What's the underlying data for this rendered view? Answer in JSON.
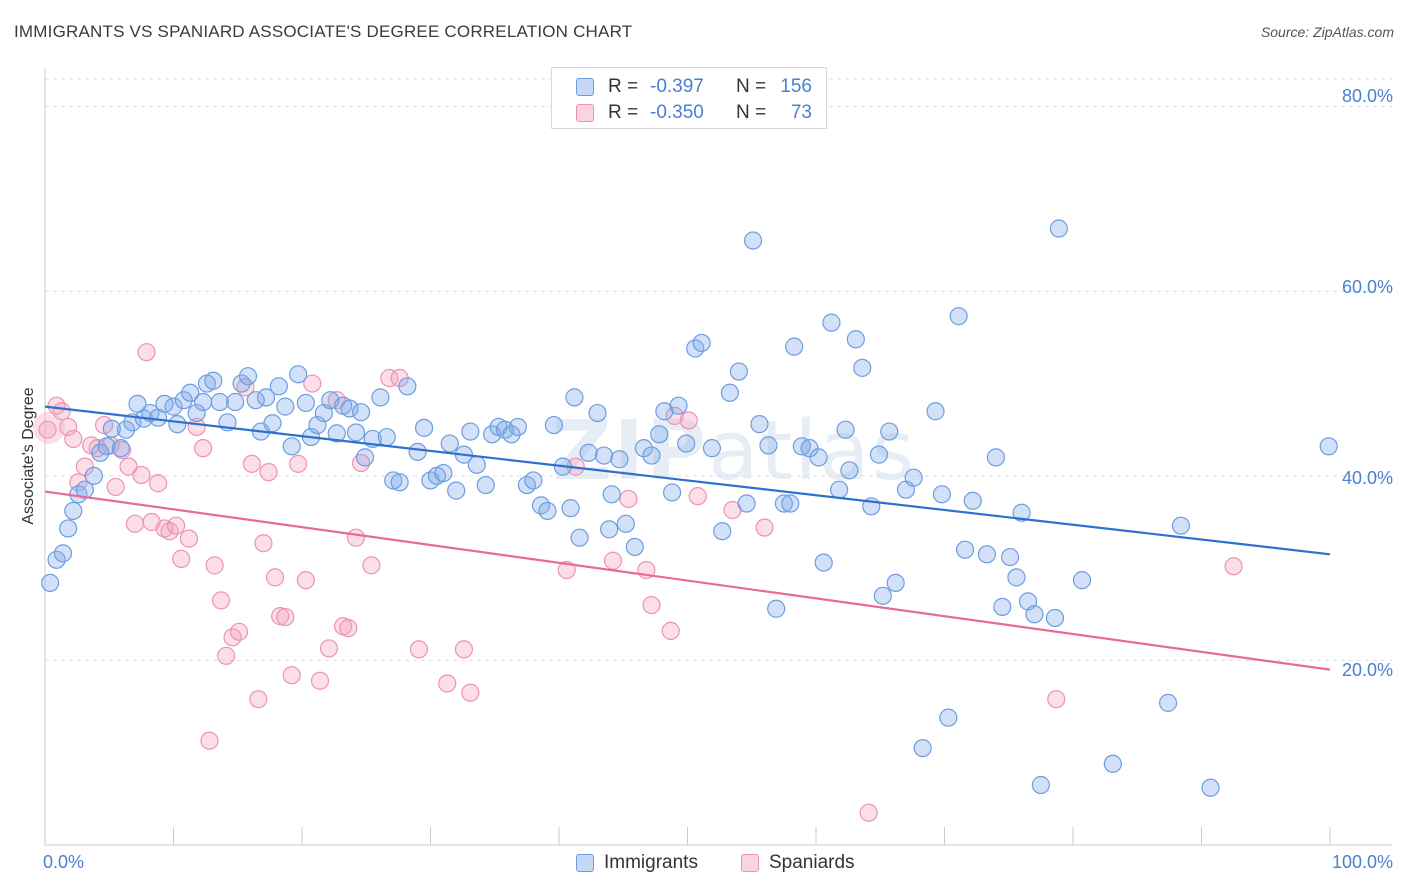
{
  "title": "IMMIGRANTS VS SPANIARD ASSOCIATE'S DEGREE CORRELATION CHART",
  "source": "Source: ZipAtlas.com",
  "watermark": {
    "bold": "ZIP",
    "thin": "atlas"
  },
  "colors": {
    "blue_fill": "rgba(126,170,234,0.35)",
    "blue_stroke": "#6b9ee0",
    "blue_line": "#2f6fd0",
    "pink_fill": "rgba(244,160,190,0.35)",
    "pink_stroke": "#ee92b2",
    "pink_line": "#e86a96",
    "tick_text": "#4a80d0",
    "grid": "#dedede"
  },
  "legend": {
    "rows": [
      {
        "series": "Immigrants",
        "r_label": "R =",
        "r_value": "-0.397",
        "n_label": "N =",
        "n_value": "156"
      },
      {
        "series": "Spaniards",
        "r_label": "R =",
        "r_value": "-0.350",
        "n_label": "N =",
        "n_value": "73"
      }
    ]
  },
  "bottom_legend": [
    "Immigrants",
    "Spaniards"
  ],
  "chart_data": {
    "type": "scatter",
    "title": "IMMIGRANTS VS SPANIARD ASSOCIATE'S DEGREE CORRELATION CHART",
    "xlabel": "",
    "ylabel": "Associate's Degree",
    "xlim": [
      0,
      100
    ],
    "ylim": [
      0,
      83
    ],
    "x_tick_labels": [
      "0.0%",
      "100.0%"
    ],
    "y_ticks": [
      20,
      40,
      60,
      80
    ],
    "y_tick_labels": [
      "20.0%",
      "40.0%",
      "60.0%",
      "80.0%"
    ],
    "grid": true,
    "legend_position": "top-center",
    "series": [
      {
        "name": "Immigrants",
        "r": -0.397,
        "n": 156,
        "trend": {
          "x": [
            0,
            100
          ],
          "y": [
            47.5,
            31.5
          ]
        },
        "points": [
          [
            0.4,
            28.4
          ],
          [
            0.9,
            30.9
          ],
          [
            1.4,
            31.6
          ],
          [
            1.8,
            34.3
          ],
          [
            2.2,
            36.2
          ],
          [
            2.6,
            38.0
          ],
          [
            3.1,
            38.5
          ],
          [
            3.8,
            40.0
          ],
          [
            4.3,
            42.5
          ],
          [
            4.8,
            43.2
          ],
          [
            5.2,
            45.1
          ],
          [
            5.9,
            43.0
          ],
          [
            6.3,
            45.0
          ],
          [
            6.8,
            45.8
          ],
          [
            7.2,
            47.8
          ],
          [
            7.7,
            46.2
          ],
          [
            8.2,
            46.8
          ],
          [
            8.8,
            46.3
          ],
          [
            9.3,
            47.8
          ],
          [
            10.0,
            47.5
          ],
          [
            10.3,
            45.6
          ],
          [
            10.8,
            48.2
          ],
          [
            11.3,
            49.0
          ],
          [
            11.8,
            46.8
          ],
          [
            12.3,
            48.0
          ],
          [
            12.6,
            50.0
          ],
          [
            13.1,
            50.3
          ],
          [
            13.6,
            48.0
          ],
          [
            14.2,
            45.8
          ],
          [
            14.8,
            48.0
          ],
          [
            15.3,
            50.0
          ],
          [
            15.8,
            50.8
          ],
          [
            16.4,
            48.2
          ],
          [
            16.8,
            44.8
          ],
          [
            17.2,
            48.5
          ],
          [
            17.7,
            45.7
          ],
          [
            18.2,
            49.7
          ],
          [
            18.7,
            47.5
          ],
          [
            19.2,
            43.2
          ],
          [
            19.7,
            51.0
          ],
          [
            20.3,
            47.9
          ],
          [
            20.7,
            44.2
          ],
          [
            21.2,
            45.5
          ],
          [
            21.7,
            46.8
          ],
          [
            22.2,
            48.2
          ],
          [
            22.7,
            44.6
          ],
          [
            23.2,
            47.6
          ],
          [
            23.7,
            47.3
          ],
          [
            24.2,
            44.7
          ],
          [
            24.6,
            46.9
          ],
          [
            24.9,
            42.0
          ],
          [
            25.5,
            44.0
          ],
          [
            26.1,
            48.5
          ],
          [
            26.6,
            44.2
          ],
          [
            27.1,
            39.5
          ],
          [
            27.6,
            39.3
          ],
          [
            28.2,
            49.7
          ],
          [
            29.0,
            42.6
          ],
          [
            29.5,
            45.2
          ],
          [
            30.0,
            39.5
          ],
          [
            30.5,
            40.0
          ],
          [
            31.0,
            40.3
          ],
          [
            31.5,
            43.5
          ],
          [
            32.0,
            38.4
          ],
          [
            32.6,
            42.3
          ],
          [
            33.1,
            44.8
          ],
          [
            33.6,
            41.2
          ],
          [
            34.3,
            39.0
          ],
          [
            34.8,
            44.5
          ],
          [
            35.3,
            45.3
          ],
          [
            35.8,
            45.0
          ],
          [
            36.3,
            44.5
          ],
          [
            36.8,
            45.3
          ],
          [
            37.5,
            39.0
          ],
          [
            38.0,
            39.5
          ],
          [
            38.6,
            36.8
          ],
          [
            39.1,
            36.2
          ],
          [
            39.6,
            45.5
          ],
          [
            40.3,
            41.0
          ],
          [
            40.9,
            36.5
          ],
          [
            41.2,
            48.5
          ],
          [
            41.6,
            33.3
          ],
          [
            42.3,
            42.5
          ],
          [
            43.0,
            46.8
          ],
          [
            43.5,
            42.2
          ],
          [
            43.9,
            34.2
          ],
          [
            44.1,
            38.0
          ],
          [
            44.7,
            41.8
          ],
          [
            45.2,
            34.8
          ],
          [
            45.9,
            32.3
          ],
          [
            46.6,
            43.0
          ],
          [
            47.2,
            42.2
          ],
          [
            47.8,
            44.5
          ],
          [
            48.2,
            47.0
          ],
          [
            48.8,
            38.2
          ],
          [
            49.3,
            47.6
          ],
          [
            49.9,
            43.5
          ],
          [
            50.6,
            53.8
          ],
          [
            51.1,
            54.4
          ],
          [
            51.9,
            43.0
          ],
          [
            52.7,
            34.0
          ],
          [
            53.3,
            49.0
          ],
          [
            54.0,
            51.3
          ],
          [
            54.6,
            37.0
          ],
          [
            55.1,
            65.5
          ],
          [
            55.6,
            45.6
          ],
          [
            56.3,
            43.3
          ],
          [
            56.9,
            25.6
          ],
          [
            57.5,
            37.0
          ],
          [
            58.0,
            37.0
          ],
          [
            58.3,
            54.0
          ],
          [
            58.9,
            43.2
          ],
          [
            59.5,
            43.0
          ],
          [
            60.2,
            42.0
          ],
          [
            60.6,
            30.6
          ],
          [
            61.2,
            56.6
          ],
          [
            61.8,
            38.5
          ],
          [
            62.3,
            45.0
          ],
          [
            62.6,
            40.6
          ],
          [
            63.1,
            54.8
          ],
          [
            63.6,
            51.7
          ],
          [
            64.3,
            36.7
          ],
          [
            64.9,
            42.3
          ],
          [
            65.2,
            27.0
          ],
          [
            65.7,
            44.8
          ],
          [
            66.2,
            28.4
          ],
          [
            67.0,
            38.5
          ],
          [
            67.6,
            39.8
          ],
          [
            68.3,
            10.5
          ],
          [
            69.3,
            47.0
          ],
          [
            69.8,
            38.0
          ],
          [
            70.3,
            13.8
          ],
          [
            71.1,
            57.3
          ],
          [
            71.6,
            32.0
          ],
          [
            72.2,
            37.3
          ],
          [
            73.3,
            31.5
          ],
          [
            74.0,
            42.0
          ],
          [
            74.5,
            25.8
          ],
          [
            75.1,
            31.2
          ],
          [
            75.6,
            29.0
          ],
          [
            76.0,
            36.0
          ],
          [
            76.5,
            26.4
          ],
          [
            77.0,
            25.0
          ],
          [
            77.5,
            6.5
          ],
          [
            78.6,
            24.6
          ],
          [
            78.9,
            66.8
          ],
          [
            80.7,
            28.7
          ],
          [
            83.1,
            8.8
          ],
          [
            87.4,
            15.4
          ],
          [
            88.4,
            34.6
          ],
          [
            90.7,
            6.2
          ],
          [
            99.9,
            43.2
          ]
        ]
      },
      {
        "name": "Spaniards",
        "r": -0.35,
        "n": 73,
        "trend": {
          "x": [
            0,
            100
          ],
          "y": [
            38.3,
            19.0
          ]
        },
        "points": [
          [
            0.2,
            45.0
          ],
          [
            0.9,
            47.6
          ],
          [
            1.3,
            47.0
          ],
          [
            1.8,
            45.3
          ],
          [
            2.2,
            44.0
          ],
          [
            2.6,
            39.3
          ],
          [
            3.1,
            41.0
          ],
          [
            3.6,
            43.3
          ],
          [
            4.1,
            43.0
          ],
          [
            4.6,
            45.5
          ],
          [
            5.1,
            43.3
          ],
          [
            5.5,
            38.8
          ],
          [
            6.0,
            42.8
          ],
          [
            6.5,
            41.0
          ],
          [
            7.0,
            34.8
          ],
          [
            7.5,
            40.1
          ],
          [
            7.9,
            53.4
          ],
          [
            8.3,
            35.0
          ],
          [
            8.8,
            39.2
          ],
          [
            9.3,
            34.3
          ],
          [
            9.7,
            34.0
          ],
          [
            10.2,
            34.6
          ],
          [
            10.6,
            31.0
          ],
          [
            11.2,
            33.2
          ],
          [
            11.8,
            45.3
          ],
          [
            12.3,
            43.0
          ],
          [
            12.8,
            11.3
          ],
          [
            13.2,
            30.3
          ],
          [
            13.7,
            26.5
          ],
          [
            14.1,
            20.5
          ],
          [
            14.6,
            22.5
          ],
          [
            15.1,
            23.1
          ],
          [
            15.6,
            49.6
          ],
          [
            16.1,
            41.3
          ],
          [
            16.6,
            15.8
          ],
          [
            17.0,
            32.7
          ],
          [
            17.4,
            40.4
          ],
          [
            17.9,
            29.0
          ],
          [
            18.3,
            24.8
          ],
          [
            18.7,
            24.7
          ],
          [
            19.2,
            18.4
          ],
          [
            19.7,
            41.3
          ],
          [
            20.3,
            28.7
          ],
          [
            20.8,
            50.0
          ],
          [
            21.4,
            17.8
          ],
          [
            22.1,
            21.3
          ],
          [
            22.7,
            48.2
          ],
          [
            23.2,
            23.7
          ],
          [
            23.6,
            23.5
          ],
          [
            24.2,
            33.3
          ],
          [
            24.6,
            41.4
          ],
          [
            25.4,
            30.3
          ],
          [
            26.8,
            50.6
          ],
          [
            27.6,
            50.6
          ],
          [
            29.1,
            21.2
          ],
          [
            31.3,
            17.5
          ],
          [
            32.6,
            21.2
          ],
          [
            33.1,
            16.5
          ],
          [
            40.6,
            29.8
          ],
          [
            41.3,
            41.0
          ],
          [
            44.2,
            30.8
          ],
          [
            45.4,
            37.5
          ],
          [
            46.8,
            29.8
          ],
          [
            47.2,
            26.0
          ],
          [
            48.7,
            23.2
          ],
          [
            49.0,
            46.5
          ],
          [
            50.1,
            46.0
          ],
          [
            50.8,
            37.8
          ],
          [
            53.5,
            36.3
          ],
          [
            56.0,
            34.4
          ],
          [
            64.1,
            3.5
          ],
          [
            78.7,
            15.8
          ],
          [
            92.5,
            30.2
          ]
        ]
      }
    ]
  }
}
